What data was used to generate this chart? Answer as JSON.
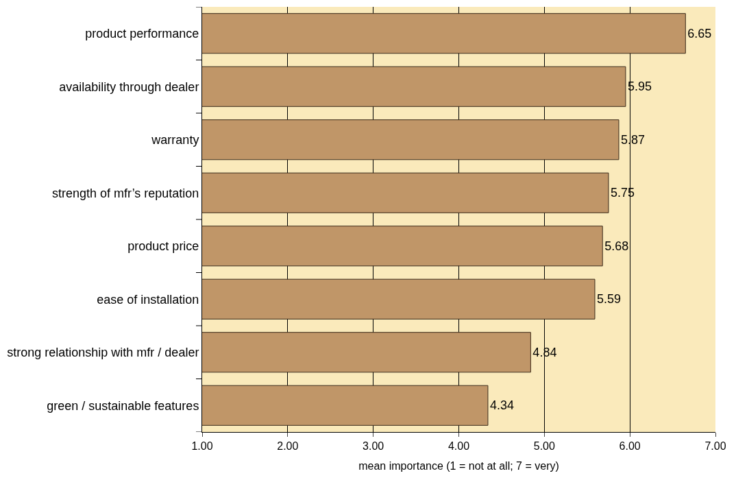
{
  "chart_data": {
    "type": "bar",
    "orientation": "horizontal",
    "xlabel": "mean importance (1 = not at all; 7 = very)",
    "categories": [
      "product performance",
      "availability through dealer",
      "warranty",
      "strength of mfr’s reputation",
      "product price",
      "ease of installation",
      "strong relationship with mfr / dealer",
      "green / sustainable features"
    ],
    "values": [
      6.65,
      5.95,
      5.87,
      5.75,
      5.68,
      5.59,
      4.84,
      4.34
    ],
    "color": "#c09668",
    "xlim": [
      1,
      7
    ],
    "xticks": [
      {
        "value": 1,
        "label": "1.00"
      },
      {
        "value": 2,
        "label": "2.00"
      },
      {
        "value": 3,
        "label": "3.00"
      },
      {
        "value": 4,
        "label": "4.00"
      },
      {
        "value": 5,
        "label": "5.00"
      },
      {
        "value": 6,
        "label": "6.00"
      },
      {
        "value": 7,
        "label": "7.00"
      }
    ],
    "grid": "x",
    "data_labels": true,
    "bands": [
      {
        "axis": "x",
        "from": 1,
        "to": 7,
        "color": "#faeabb"
      }
    ]
  }
}
